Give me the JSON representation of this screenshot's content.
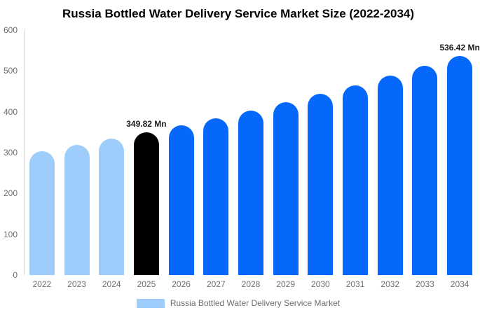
{
  "page": {
    "background": "#ffffff"
  },
  "chart_data": {
    "type": "bar",
    "title": "Russia Bottled Water Delivery Service Market Size (2022-2034)",
    "categories": [
      "2022",
      "2023",
      "2024",
      "2025",
      "2026",
      "2027",
      "2028",
      "2029",
      "2030",
      "2031",
      "2032",
      "2033",
      "2034"
    ],
    "values": [
      303.3,
      318.1,
      333.5,
      349.82,
      366.9,
      384.7,
      403.5,
      423.1,
      443.7,
      465.3,
      488.0,
      511.8,
      536.42
    ],
    "bar_color_keys": [
      "light",
      "light",
      "light",
      "dark",
      "blue",
      "blue",
      "blue",
      "blue",
      "blue",
      "blue",
      "blue",
      "blue",
      "blue"
    ],
    "palette": {
      "light": "#9ecdfb",
      "dark": "#000000",
      "blue": "#0667fb"
    },
    "annotations": [
      {
        "category": "2025",
        "text": "349.82 Mn"
      },
      {
        "category": "2034",
        "text": "536.42 Mn"
      }
    ],
    "xlabel": "",
    "ylabel": "",
    "yticks": [
      0,
      100,
      200,
      300,
      400,
      500,
      600
    ],
    "ylim": [
      0,
      600
    ],
    "grid": false,
    "axis_color": "#d6d6d6",
    "tick_label_color": "#6e6e6e",
    "legend": {
      "position": "bottom",
      "label": "Russia Bottled Water Delivery Service Market",
      "swatch_color": "#9ecdfb"
    }
  }
}
